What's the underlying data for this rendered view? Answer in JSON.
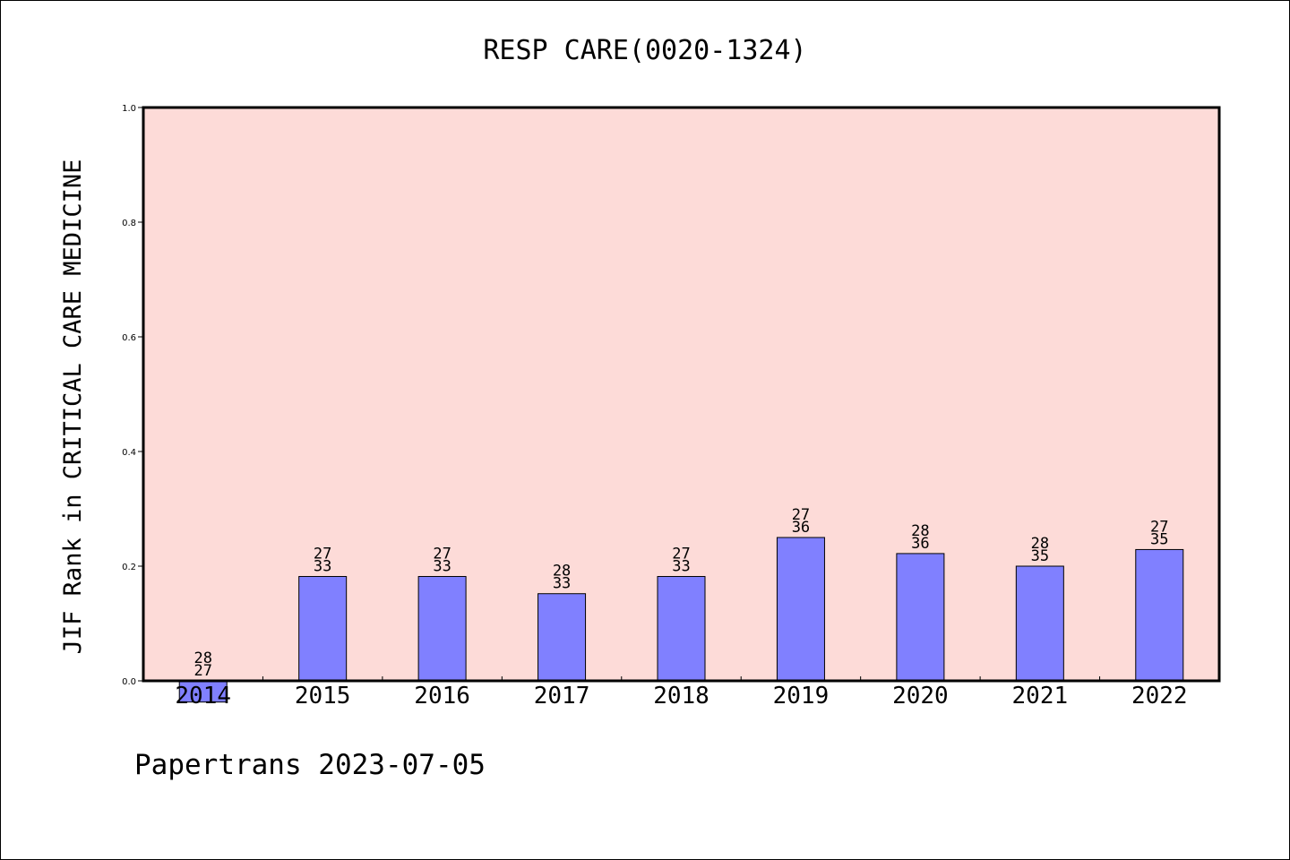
{
  "colors": {
    "plot_background": "#fddbd8",
    "bar_fill": "#8080ff",
    "bar_stroke": "#000000",
    "axis": "#000000"
  },
  "footer": "Papertrans 2023-07-05",
  "chart_data": {
    "type": "bar",
    "title": "RESP CARE(0020-1324)",
    "xlabel": "",
    "ylabel": "JIF Rank in CRITICAL CARE MEDICINE",
    "ylim": [
      0.0,
      1.0
    ],
    "yticks": [
      "0.0",
      "0.2",
      "0.4",
      "0.6",
      "0.8",
      "1.0"
    ],
    "grid": false,
    "categories": [
      "2014",
      "2015",
      "2016",
      "2017",
      "2018",
      "2019",
      "2020",
      "2021",
      "2022"
    ],
    "values": [
      -0.037,
      0.182,
      0.182,
      0.152,
      0.182,
      0.25,
      0.222,
      0.2,
      0.229
    ],
    "labels": [
      [
        "28",
        "27"
      ],
      [
        "27",
        "33"
      ],
      [
        "27",
        "33"
      ],
      [
        "28",
        "33"
      ],
      [
        "27",
        "33"
      ],
      [
        "27",
        "36"
      ],
      [
        "28",
        "36"
      ],
      [
        "28",
        "35"
      ],
      [
        "27",
        "35"
      ]
    ]
  }
}
